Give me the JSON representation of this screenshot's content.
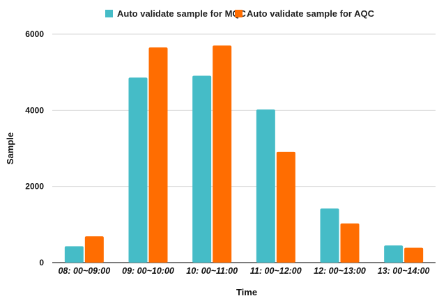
{
  "chart_data": {
    "type": "bar",
    "title": "",
    "xlabel": "Time",
    "ylabel": "Sample",
    "categories": [
      "08: 00~09:00",
      "09: 00~10:00",
      "10: 00~11:00",
      "11: 00~12:00",
      "12: 00~13:00",
      "13: 00~14:00"
    ],
    "series": [
      {
        "name": "Auto validate sample for MQC",
        "color": "#45BCC7",
        "values": [
          430,
          4860,
          4910,
          4020,
          1420,
          450
        ]
      },
      {
        "name": "Auto validate sample for AQC",
        "color": "#FF6D01",
        "values": [
          690,
          5650,
          5700,
          2910,
          1030,
          390
        ]
      }
    ],
    "ylim": [
      0,
      6000
    ],
    "yticks": [
      "0",
      "2000",
      "4000",
      "6000"
    ],
    "grid": true,
    "legend": "top-center"
  }
}
